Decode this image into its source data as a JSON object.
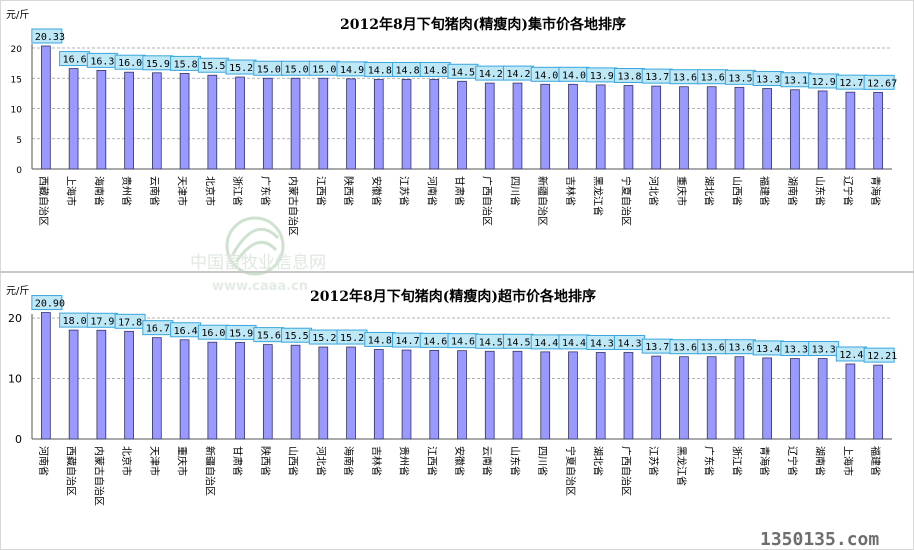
{
  "chart_data": [
    {
      "type": "bar",
      "title": "2012年8月下旬猪肉(精瘦肉)集市价各地排序",
      "ylabel": "元/斤",
      "ylim": [
        0,
        20
      ],
      "yticks": [
        0,
        5,
        10,
        15,
        20
      ],
      "grid": true,
      "categories": [
        "西藏自治区",
        "上海市",
        "海南省",
        "贵州省",
        "云南省",
        "天津市",
        "北京市",
        "浙江省",
        "广东省",
        "内蒙古自治区",
        "江西省",
        "陕西省",
        "安徽省",
        "江苏省",
        "河南省",
        "甘肃省",
        "广西自治区",
        "四川省",
        "新疆自治区",
        "吉林省",
        "黑龙江省",
        "宁夏自治区",
        "河北省",
        "重庆市",
        "湖北省",
        "山西省",
        "福建省",
        "湖南省",
        "山东省",
        "辽宁省",
        "青海省"
      ],
      "values": [
        20.33,
        16.6,
        16.3,
        16.0,
        15.9,
        15.8,
        15.5,
        15.2,
        15.0,
        15.0,
        15.0,
        14.9,
        14.8,
        14.8,
        14.8,
        14.5,
        14.2,
        14.2,
        14.0,
        14.0,
        13.9,
        13.8,
        13.7,
        13.6,
        13.6,
        13.5,
        13.3,
        13.1,
        12.9,
        12.7,
        12.67
      ],
      "labels": [
        "20.33",
        "16.6",
        "16.3",
        "16.0",
        "15.9",
        "15.8",
        "15.5",
        "15.2",
        "15.0",
        "15.0",
        "15.0",
        "14.9",
        "14.8",
        "14.8",
        "14.8",
        "14.5",
        "14.2",
        "14.2",
        "14.0",
        "14.0",
        "13.9",
        "13.8",
        "13.7",
        "13.6",
        "13.6",
        "13.5",
        "13.3",
        "13.1",
        "12.9",
        "12.7",
        "12.67"
      ]
    },
    {
      "type": "bar",
      "title": "2012年8月下旬猪肉(精瘦肉)超市价各地排序",
      "ylabel": "元/斤",
      "ylim": [
        0,
        20
      ],
      "yticks": [
        0,
        10,
        20
      ],
      "grid": true,
      "categories": [
        "河南省",
        "西藏自治区",
        "内蒙古自治区",
        "北京市",
        "天津市",
        "重庆市",
        "新疆自治区",
        "甘肃省",
        "陕西省",
        "山西省",
        "河北省",
        "海南省",
        "吉林省",
        "贵州省",
        "江西省",
        "安徽省",
        "云南省",
        "山东省",
        "四川省",
        "宁夏自治区",
        "湖北省",
        "广西自治区",
        "江苏省",
        "黑龙江省",
        "广东省",
        "浙江省",
        "青海省",
        "辽宁省",
        "湖南省",
        "上海市",
        "福建省"
      ],
      "values": [
        20.9,
        18.0,
        17.97,
        17.8,
        16.75,
        16.4,
        16.0,
        15.96,
        15.6,
        15.5,
        15.2,
        15.2,
        14.8,
        14.7,
        14.65,
        14.6,
        14.5,
        14.5,
        14.4,
        14.4,
        14.3,
        14.3,
        13.7,
        13.6,
        13.6,
        13.6,
        13.4,
        13.3,
        13.3,
        12.4,
        12.21
      ],
      "labels": [
        "20.90",
        "18.0",
        "17.97",
        "17.8",
        "16.75",
        "16.4",
        "16.0",
        "15.96",
        "15.6",
        "15.5",
        "15.2",
        "15.20",
        "14.8",
        "14.7",
        "14.65",
        "14.6",
        "14.5",
        "14.5",
        "14.4",
        "14.4",
        "14.3",
        "14.3",
        "13.7",
        "13.6",
        "13.6",
        "13.6",
        "13.4",
        "13.3",
        "13.3",
        "12.4",
        "12.21"
      ]
    }
  ],
  "watermark": {
    "logo_text": "中国畜牧业信息网",
    "logo_url_text": "www.caaa.cn",
    "corner_text": "1350135.com"
  },
  "colors": {
    "bar_fill": "#9999ff",
    "bar_stroke": "#333366",
    "label_fill": "#bfe8f7",
    "label_stroke": "#3aa6dc",
    "grid": "#9a9a9a",
    "title": "#000000"
  }
}
